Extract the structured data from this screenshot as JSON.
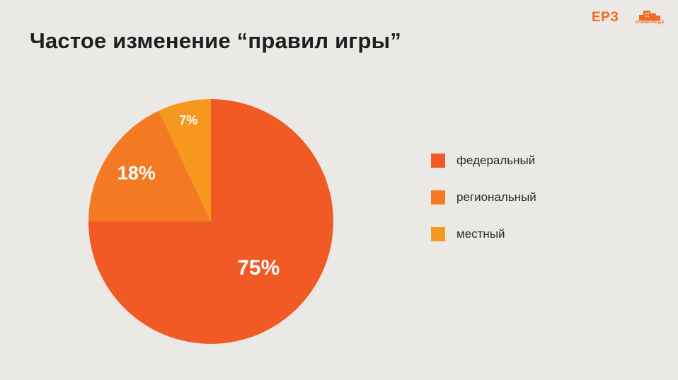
{
  "slide": {
    "title": "Частое изменение “правил игры”"
  },
  "logos": {
    "epz_text": "ЕРЗ",
    "olympiad_text": "ОЛИМПИАДА",
    "olympiad_icon": "building-icon",
    "brand_color": "#f26a21"
  },
  "chart_data": {
    "type": "pie",
    "title": "",
    "slices": [
      {
        "label": "федеральный",
        "value": 75,
        "value_label": "75%",
        "color": "#f15a24"
      },
      {
        "label": "региональный",
        "value": 18,
        "value_label": "18%",
        "color": "#f47923"
      },
      {
        "label": "местный",
        "value": 7,
        "value_label": "7%",
        "color": "#f7981e"
      }
    ],
    "start_angle_deg": 0,
    "direction": "clockwise",
    "legend_position": "right"
  }
}
